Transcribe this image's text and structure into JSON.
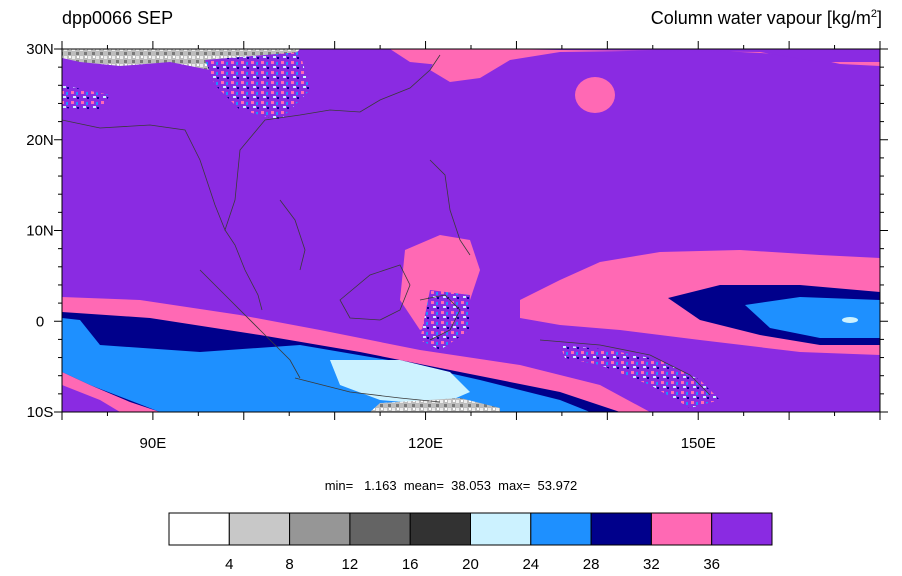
{
  "title": {
    "left": "dpp0066 SEP",
    "right_main": "Column water vapour [kg/m",
    "right_sup": "2",
    "right_end": "]"
  },
  "stats": {
    "text": "min=   1.163  mean=  38.053  max=  53.972"
  },
  "map": {
    "lon_range": [
      80,
      170
    ],
    "lat_range": [
      -10,
      30
    ],
    "lat_labels": [
      {
        "value": 30,
        "text": "30N"
      },
      {
        "value": 20,
        "text": "20N"
      },
      {
        "value": 10,
        "text": "10N"
      },
      {
        "value": 0,
        "text": "0"
      },
      {
        "value": -10,
        "text": "10S"
      }
    ],
    "lon_labels": [
      {
        "value": 90,
        "text": "90E"
      },
      {
        "value": 120,
        "text": "120E"
      },
      {
        "value": 150,
        "text": "150E"
      }
    ]
  },
  "colorbar": {
    "colors": [
      "#ffffff",
      "#c8c8c8",
      "#969696",
      "#646464",
      "#323232",
      "#ccf2ff",
      "#1e90ff",
      "#00008b",
      "#ff69b4",
      "#8a2be2"
    ],
    "labels": [
      "4",
      "8",
      "12",
      "16",
      "20",
      "24",
      "28",
      "32",
      "36"
    ]
  }
}
